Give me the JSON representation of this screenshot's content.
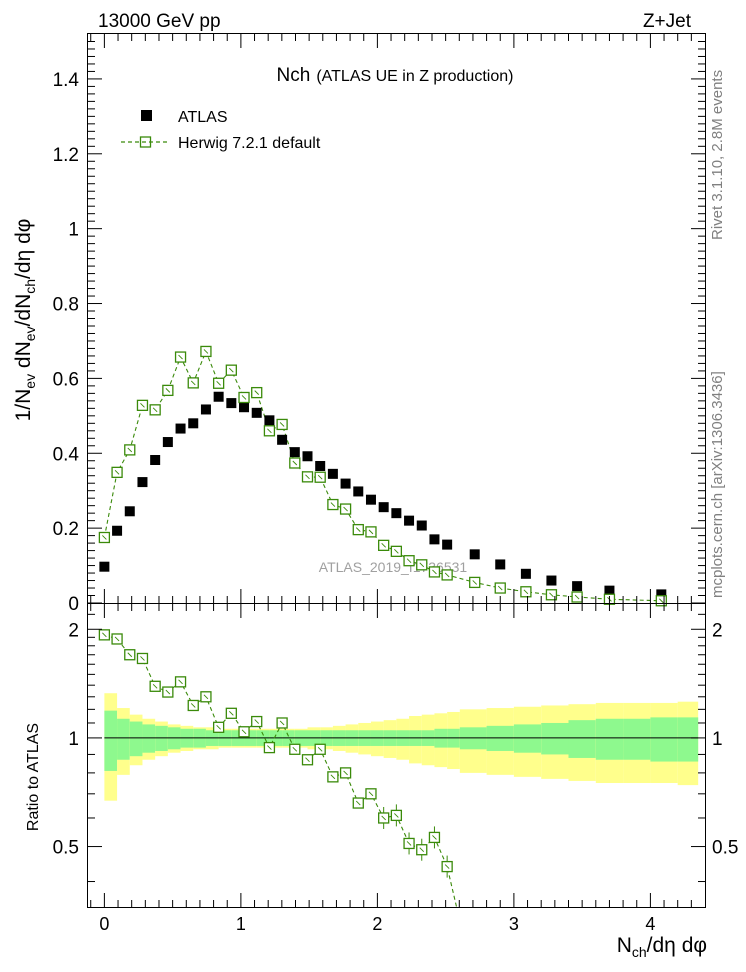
{
  "header": {
    "left": "13000 GeV pp",
    "right": "Z+Jet"
  },
  "side_labels": {
    "rivet": "Rivet 3.1.10, 2.8M events",
    "mcplots": "mcplots.cern.ch [arXiv:1306.3436]"
  },
  "chart_data": {
    "type": "scatter",
    "title": "Nch",
    "subtitle": "(ATLAS UE in Z production)",
    "watermark": "ATLAS_2019_I1736531",
    "xlabel": "N_ch/dη dφ",
    "ylabel": "1/N_ev dN_ev/dN_ch/dη dφ",
    "ratio_ylabel": "Ratio to ATLAS",
    "xlim": [
      -0.12,
      4.4
    ],
    "ylim": [
      0,
      1.52
    ],
    "ratio_ylim": [
      0.34,
      2.35
    ],
    "xticks": [
      0,
      1,
      2,
      3,
      4
    ],
    "xtick_labels": [
      "0",
      "1",
      "2",
      "3",
      "4"
    ],
    "yticks": [
      0,
      0.2,
      0.4,
      0.6,
      0.8,
      1,
      1.2,
      1.4
    ],
    "ytick_labels": [
      "0",
      "0.2",
      "0.4",
      "0.6",
      "0.8",
      "1",
      "1.2",
      "1.4"
    ],
    "ratio_yticks": [
      0.5,
      1,
      2
    ],
    "ratio_ytick_labels": [
      "0.5",
      "1",
      "2"
    ],
    "legend": [
      "ATLAS",
      "Herwig 7.2.1 default"
    ],
    "series": [
      {
        "name": "ATLAS",
        "color": "#000000",
        "marker": "filled-square",
        "x": [
          0,
          0.093,
          0.186,
          0.279,
          0.372,
          0.465,
          0.558,
          0.651,
          0.744,
          0.837,
          0.93,
          1.023,
          1.116,
          1.209,
          1.302,
          1.395,
          1.488,
          1.581,
          1.674,
          1.767,
          1.86,
          1.953,
          2.046,
          2.139,
          2.232,
          2.325,
          2.418,
          2.511,
          2.713,
          2.9,
          3.088,
          3.275,
          3.463,
          3.7,
          4.08
        ],
        "y": [
          0.097,
          0.193,
          0.245,
          0.323,
          0.382,
          0.43,
          0.466,
          0.48,
          0.517,
          0.551,
          0.534,
          0.523,
          0.508,
          0.488,
          0.436,
          0.403,
          0.392,
          0.366,
          0.345,
          0.319,
          0.298,
          0.276,
          0.256,
          0.24,
          0.22,
          0.207,
          0.17,
          0.156,
          0.13,
          0.103,
          0.078,
          0.06,
          0.045,
          0.033,
          0.023
        ]
      },
      {
        "name": "Herwig 7.2.1 default",
        "color": "#3a8a0a",
        "marker": "open-square",
        "linestyle": "dashed",
        "x": [
          0,
          0.093,
          0.186,
          0.279,
          0.372,
          0.465,
          0.558,
          0.651,
          0.744,
          0.837,
          0.93,
          1.023,
          1.116,
          1.209,
          1.302,
          1.395,
          1.488,
          1.581,
          1.674,
          1.767,
          1.86,
          1.953,
          2.046,
          2.139,
          2.232,
          2.325,
          2.418,
          2.511,
          2.713,
          2.9,
          3.088,
          3.275,
          3.463,
          3.7,
          4.08
        ],
        "y": [
          0.175,
          0.349,
          0.409,
          0.528,
          0.516,
          0.568,
          0.657,
          0.588,
          0.672,
          0.587,
          0.622,
          0.549,
          0.562,
          0.46,
          0.477,
          0.374,
          0.337,
          0.336,
          0.263,
          0.251,
          0.196,
          0.19,
          0.154,
          0.138,
          0.113,
          0.102,
          0.083,
          0.075,
          0.055,
          0.04,
          0.03,
          0.022,
          0.016,
          0.01,
          0.006
        ]
      }
    ],
    "ratio": {
      "reference": 1,
      "herwig_x": [
        0,
        0.093,
        0.186,
        0.279,
        0.372,
        0.465,
        0.558,
        0.651,
        0.744,
        0.837,
        0.93,
        1.023,
        1.116,
        1.209,
        1.302,
        1.395,
        1.488,
        1.581,
        1.674,
        1.767,
        1.86,
        1.953,
        2.046,
        2.139,
        2.232,
        2.325,
        2.418,
        2.511
      ],
      "herwig_y": [
        1.93,
        1.88,
        1.7,
        1.66,
        1.39,
        1.34,
        1.43,
        1.23,
        1.3,
        1.07,
        1.17,
        1.04,
        1.11,
        0.94,
        1.1,
        0.93,
        0.87,
        0.93,
        0.78,
        0.8,
        0.66,
        0.7,
        0.6,
        0.61,
        0.51,
        0.49,
        0.53,
        0.44
      ],
      "band_edges": [
        0,
        0.093,
        0.186,
        0.279,
        0.372,
        0.465,
        0.558,
        0.651,
        0.744,
        0.837,
        0.93,
        1.023,
        1.116,
        1.209,
        1.302,
        1.395,
        1.488,
        1.581,
        1.674,
        1.767,
        1.86,
        1.953,
        2.046,
        2.139,
        2.232,
        2.325,
        2.418,
        2.511,
        2.604,
        2.8,
        3.0,
        3.2,
        3.4,
        3.6,
        3.8,
        4.0,
        4.2,
        4.35
      ],
      "stat_half_width": [
        0.19,
        0.13,
        0.11,
        0.09,
        0.08,
        0.07,
        0.06,
        0.06,
        0.05,
        0.05,
        0.05,
        0.05,
        0.05,
        0.05,
        0.05,
        0.05,
        0.05,
        0.05,
        0.05,
        0.05,
        0.05,
        0.05,
        0.05,
        0.05,
        0.05,
        0.05,
        0.06,
        0.06,
        0.07,
        0.08,
        0.09,
        0.1,
        0.12,
        0.13,
        0.13,
        0.14,
        0.14
      ],
      "total_half_width": [
        0.33,
        0.21,
        0.16,
        0.13,
        0.11,
        0.09,
        0.08,
        0.07,
        0.07,
        0.06,
        0.06,
        0.06,
        0.06,
        0.06,
        0.06,
        0.06,
        0.07,
        0.07,
        0.08,
        0.09,
        0.1,
        0.11,
        0.12,
        0.13,
        0.15,
        0.16,
        0.17,
        0.18,
        0.2,
        0.21,
        0.22,
        0.23,
        0.24,
        0.25,
        0.25,
        0.25,
        0.26
      ]
    }
  }
}
